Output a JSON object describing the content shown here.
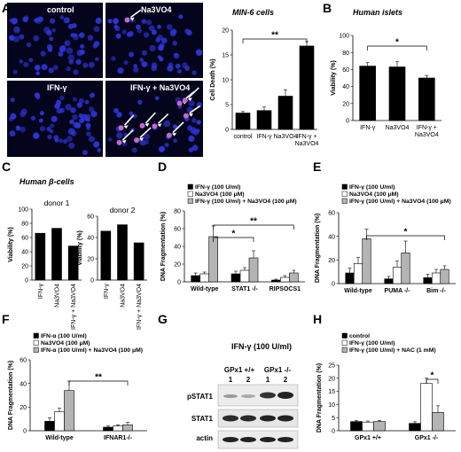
{
  "figure": {
    "panel_labels": [
      "A",
      "B",
      "C",
      "D",
      "E",
      "F",
      "G",
      "H"
    ],
    "colors": {
      "black": "#000000",
      "white": "#ffffff",
      "gray": "#b4b4b4",
      "nuclei": "#2f35d8",
      "dead": "#c06ad0",
      "arrow": "#ffffff"
    }
  },
  "panel_a": {
    "image_labels": [
      "control",
      "Na3VO4",
      "IFN-γ",
      "IFN-γ + Na3VO4"
    ],
    "description_title": "MIN-6 cells"
  },
  "panel_b": {
    "title": "Human islets"
  },
  "panel_c": {
    "title": "Human β-cells"
  },
  "panel_g": {
    "condition": "IFN-γ (100 U/ml)",
    "groups": [
      "GPx1 +/+",
      "GPx1 -/-"
    ],
    "lanes": [
      "1",
      "2",
      "1",
      "2"
    ],
    "rows": [
      "pSTAT1",
      "STAT1",
      "actin"
    ]
  },
  "chart_data": [
    {
      "panel": "A",
      "type": "bar",
      "title": "MIN-6 cells",
      "categories": [
        "control",
        "IFN-γ",
        "Na3VO4",
        "IFN-γ + Na3VO4"
      ],
      "series": [
        {
          "values": [
            3.3,
            3.8,
            6.7,
            16.8
          ],
          "errors": [
            0.3,
            0.7,
            1.3,
            0.9
          ]
        }
      ],
      "ylabel": "Cell Death (%)",
      "xlabel": "",
      "ylim": [
        0,
        20
      ],
      "yticks": [
        0,
        5,
        10,
        15,
        20
      ],
      "annotations": [
        {
          "text": "**",
          "from": 0,
          "to": 3
        }
      ]
    },
    {
      "panel": "B",
      "type": "bar",
      "title": "Human islets",
      "categories": [
        "IFN-γ",
        "Na3VO4",
        "IFN-γ + Na3VO4"
      ],
      "series": [
        {
          "values": [
            64,
            63,
            50
          ],
          "errors": [
            4,
            6,
            3
          ]
        }
      ],
      "ylabel": "Viability (%)",
      "xlabel": "",
      "ylim": [
        0,
        100
      ],
      "yticks": [
        0,
        20,
        40,
        60,
        80,
        100
      ],
      "annotations": [
        {
          "text": "*",
          "from": 0,
          "to": 2
        }
      ]
    },
    {
      "panel": "C",
      "type": "bar",
      "subtitle": "donor 1",
      "categories": [
        "IFN-γ",
        "Na3VO4",
        "IFN-γ + Na3VO4"
      ],
      "series": [
        {
          "values": [
            66,
            73,
            48
          ]
        }
      ],
      "ylabel": "Viability (%)",
      "ylim": [
        0,
        100
      ],
      "yticks": [
        0,
        20,
        40,
        60,
        80,
        100
      ]
    },
    {
      "panel": "C",
      "type": "bar",
      "subtitle": "donor 2",
      "categories": [
        "IFN-γ",
        "Na3VO4",
        "IFN-γ + Na3VO4"
      ],
      "series": [
        {
          "values": [
            46,
            52,
            35
          ]
        }
      ],
      "ylabel": "Viability (%)",
      "ylim": [
        0,
        60
      ],
      "yticks": [
        0,
        20,
        40,
        60
      ]
    },
    {
      "panel": "D",
      "type": "bar",
      "categories": [
        "Wild-type",
        "STAT1 -/-",
        "RIPSOCS1"
      ],
      "series": [
        {
          "name": "IFN-γ (100 U/ml)",
          "values": [
            7,
            9,
            2
          ],
          "errors": [
            3,
            3,
            1
          ]
        },
        {
          "name": "Na3VO4 (100 μM)",
          "values": [
            9,
            13,
            5
          ],
          "errors": [
            2,
            3,
            2
          ]
        },
        {
          "name": "IFN-γ (100 U/ml) + Na3VO4 (100 μM)",
          "values": [
            51,
            27,
            10
          ],
          "errors": [
            12,
            8,
            3
          ]
        }
      ],
      "ylabel": "DNA Fragmentation (%)",
      "ylim": [
        0,
        80
      ],
      "yticks": [
        0,
        20,
        40,
        60,
        80
      ],
      "annotations": [
        {
          "text": "*",
          "from": 0,
          "to": 1
        },
        {
          "text": "**",
          "from": 0,
          "to": 2
        }
      ]
    },
    {
      "panel": "E",
      "type": "bar",
      "categories": [
        "Wild-type",
        "PUMA -/-",
        "Bim -/-"
      ],
      "series": [
        {
          "name": "IFN-γ (100 U/ml)",
          "values": [
            9,
            4,
            5
          ],
          "errors": [
            4,
            2,
            3
          ]
        },
        {
          "name": "Na3VO4 (100 μM)",
          "values": [
            17,
            14,
            9
          ],
          "errors": [
            5,
            5,
            3
          ]
        },
        {
          "name": "IFN-γ (100 U/ml) + Na3VO4 (100 μM)",
          "values": [
            38,
            26,
            12
          ],
          "errors": [
            8,
            10,
            3
          ]
        }
      ],
      "ylabel": "DNA Fragmentation (%)",
      "ylim": [
        0,
        60
      ],
      "yticks": [
        0,
        20,
        40,
        60
      ],
      "annotations": [
        {
          "text": "*",
          "from": 0,
          "to": 2
        }
      ]
    },
    {
      "panel": "F",
      "type": "bar",
      "categories": [
        "Wild-type",
        "IFNAR1-/-"
      ],
      "series": [
        {
          "name": "IFN-α (100 U/ml)",
          "values": [
            8,
            3
          ],
          "errors": [
            3,
            1
          ]
        },
        {
          "name": "Na3VO4 (100 μM)",
          "values": [
            16,
            4
          ],
          "errors": [
            3,
            1
          ]
        },
        {
          "name": "IFN-α (100 U/ml) + Na3VO4 (100 μM)",
          "values": [
            34,
            5
          ],
          "errors": [
            8,
            2
          ]
        }
      ],
      "ylabel": "DNA Fragmentation (%)",
      "ylim": [
        0,
        60
      ],
      "yticks": [
        0,
        20,
        40,
        60
      ],
      "annotations": [
        {
          "text": "**",
          "from": 0,
          "to": 1
        }
      ]
    },
    {
      "panel": "H",
      "type": "bar",
      "categories": [
        "GPx1 +/+",
        "GPx1 -/-"
      ],
      "series": [
        {
          "name": "control",
          "values": [
            3.5,
            2.8
          ],
          "errors": [
            0.4,
            0.6
          ]
        },
        {
          "name": "IFN-γ (100 U/ml)",
          "values": [
            3.3,
            18
          ],
          "errors": [
            0.4,
            2
          ]
        },
        {
          "name": "IFN-γ (100 U/ml) + NAC (1 mM)",
          "values": [
            3.5,
            7
          ],
          "errors": [
            0.4,
            2.5
          ]
        }
      ],
      "ylabel": "DNA Fragmentation (%)",
      "ylim": [
        0,
        25
      ],
      "yticks": [
        0,
        5,
        10,
        15,
        20,
        25
      ],
      "annotations": [
        {
          "text": "*",
          "from": 1,
          "to": 2,
          "within": 1
        }
      ]
    }
  ]
}
